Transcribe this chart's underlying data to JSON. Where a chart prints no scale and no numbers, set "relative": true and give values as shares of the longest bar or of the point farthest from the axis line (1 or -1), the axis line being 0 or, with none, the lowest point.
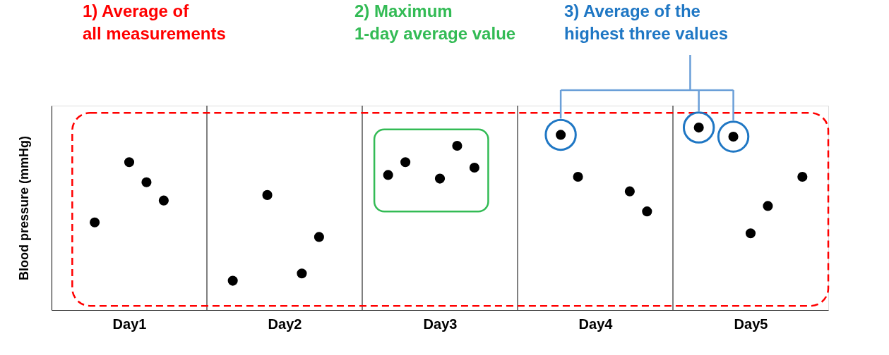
{
  "chart_data": {
    "type": "scatter",
    "relative": true,
    "ylabel": "Blood pressure  (mmHg)",
    "categories": [
      null,
      null,
      null,
      null,
      "Day1",
      null,
      null,
      null,
      null,
      null,
      null,
      null,
      null,
      "Day2",
      null,
      null,
      null,
      null,
      null,
      null,
      null,
      null,
      "Day3",
      null,
      null,
      null,
      null,
      null,
      null,
      null,
      null,
      "Day4",
      null,
      null,
      null,
      null,
      null,
      null,
      null,
      null,
      "Day5",
      null,
      null,
      null,
      null
    ],
    "grid": "x",
    "marker": "circle",
    "series": [
      {
        "color": "#000000",
        "values": [
          null,
          null,
          0.48,
          null,
          0.81,
          0.7,
          0.6,
          null,
          null,
          null,
          0.16,
          null,
          0.63,
          null,
          0.2,
          0.4,
          null,
          null,
          null,
          0.74,
          0.81,
          null,
          0.72,
          0.9,
          0.78,
          null,
          null,
          null,
          null,
          0.96,
          0.73,
          null,
          null,
          0.65,
          0.54,
          null,
          null,
          1.0,
          null,
          0.95,
          0.42,
          0.57,
          null,
          0.73,
          null
        ]
      },
      {
        "color": "#1f77c4",
        "values": [
          null,
          null,
          null,
          null,
          null,
          null,
          null,
          null,
          null,
          null,
          null,
          null,
          null,
          null,
          null,
          null,
          null,
          null,
          null,
          null,
          null,
          null,
          null,
          null,
          null,
          null,
          null,
          null,
          null,
          0.96,
          null,
          null,
          null,
          null,
          null,
          null,
          null,
          1.0,
          null,
          0.95,
          null,
          null,
          null,
          null,
          null
        ]
      }
    ],
    "annotations": [
      "1)  Average of\nall measurements",
      "2) Maximum\n   1-day average value",
      "3) Average of the\nhighest three values"
    ]
  }
}
